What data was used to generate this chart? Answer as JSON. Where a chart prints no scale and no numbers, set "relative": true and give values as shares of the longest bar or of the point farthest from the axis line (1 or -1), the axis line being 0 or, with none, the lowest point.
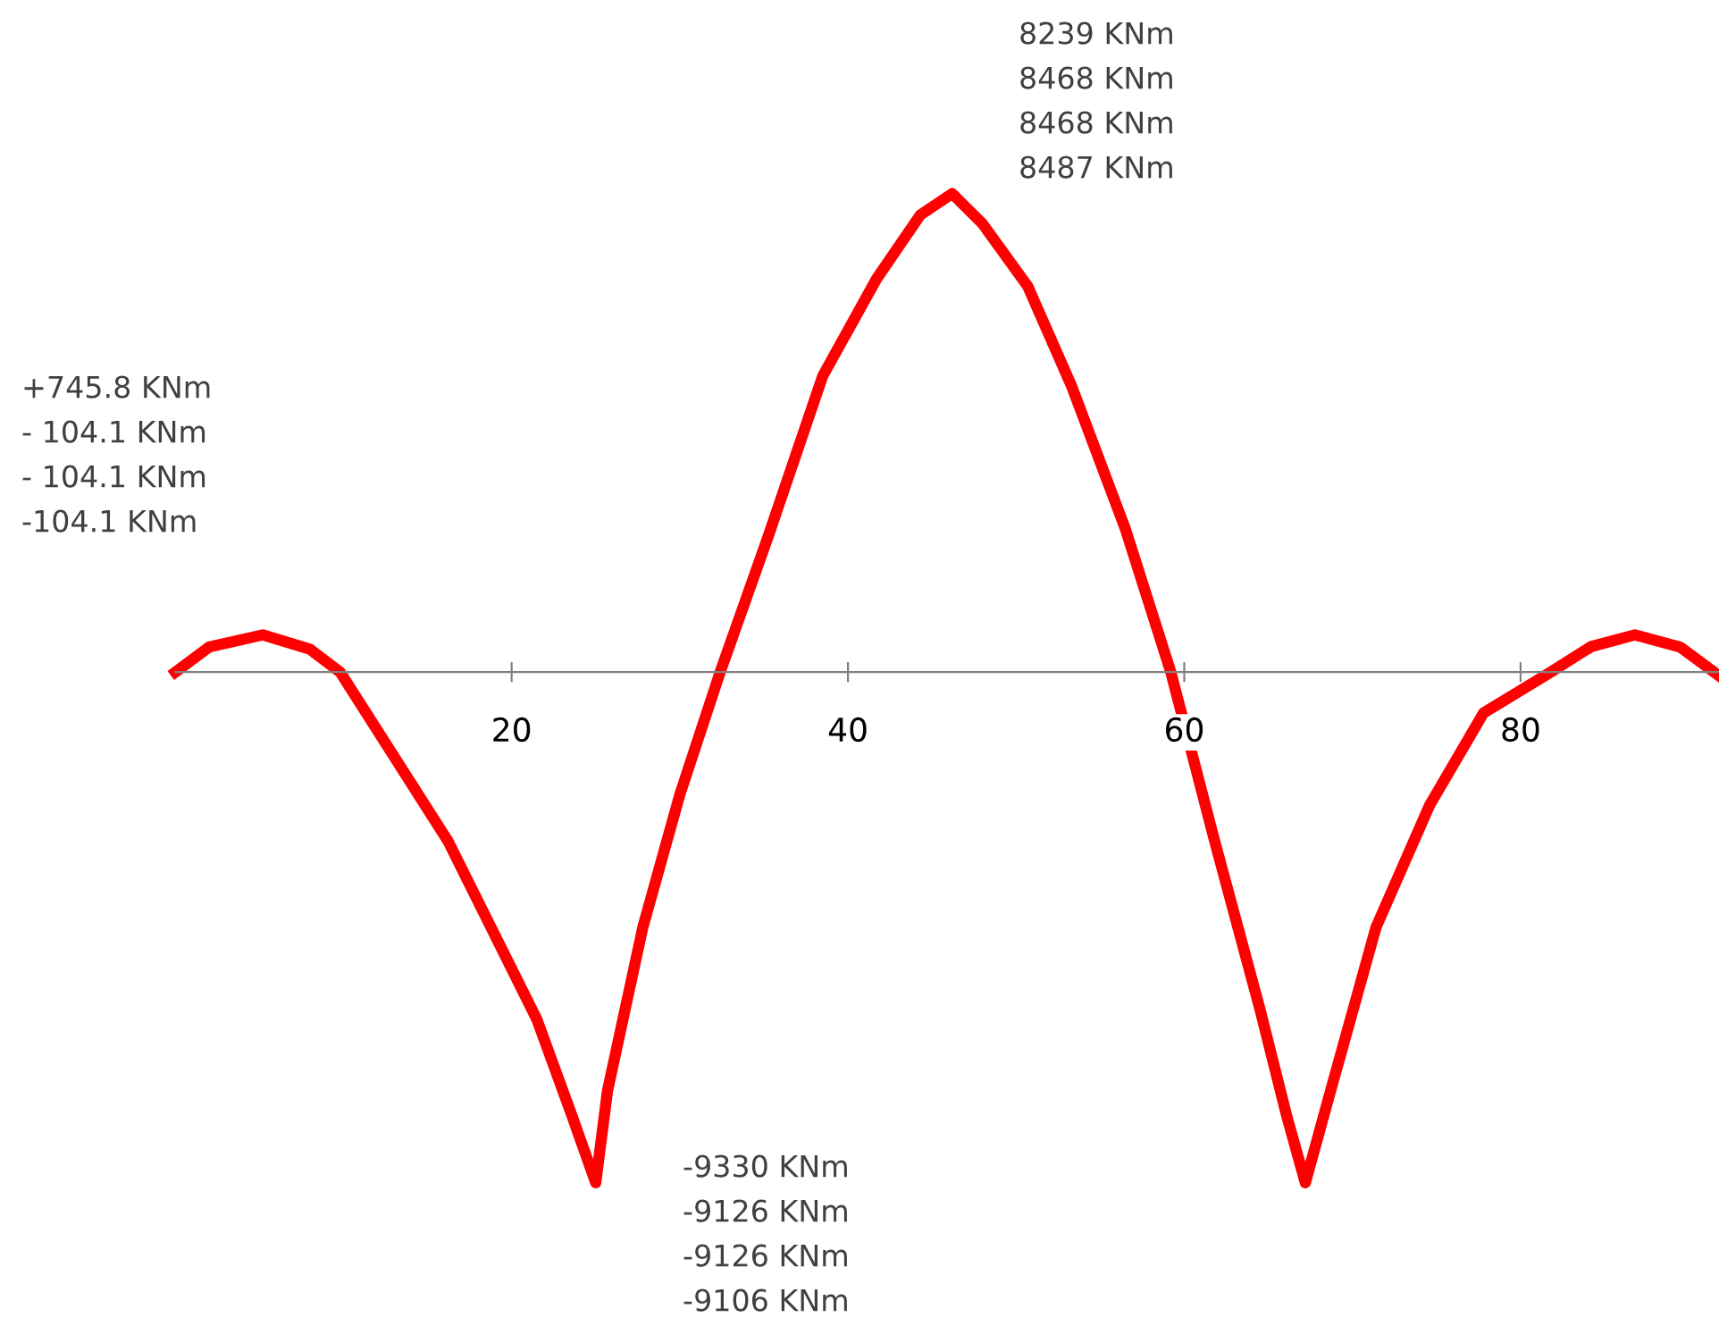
{
  "chart_data": {
    "type": "line",
    "relative": true,
    "x": [
      0,
      2,
      5.2,
      8,
      9.8,
      16.2,
      21.5,
      23.6,
      25,
      25.7,
      27.8,
      30,
      32.4,
      35.3,
      38.5,
      41.7,
      44.3,
      46.2,
      48,
      50.7,
      53.3,
      56.5,
      59.2,
      61.8,
      64.5,
      66.1,
      67.2,
      68.7,
      71.4,
      74.6,
      77.8,
      81.8,
      84.2,
      86.8,
      89.5,
      91.8
    ],
    "series": [
      {
        "color": "#ff0000",
        "values": [
          0,
          0.049,
          0.073,
          0.045,
          0,
          -0.33,
          -0.68,
          -0.87,
          -1,
          -0.82,
          -0.5,
          -0.24,
          0,
          0.27,
          0.58,
          0.77,
          0.895,
          0.937,
          0.878,
          0.755,
          0.56,
          0.28,
          0,
          -0.33,
          -0.66,
          -0.87,
          -1,
          -0.82,
          -0.5,
          -0.26,
          -0.08,
          0,
          0.05,
          0.073,
          0.049,
          -0.007
        ]
      }
    ],
    "xlim": [
      0,
      91.8
    ],
    "xticks": [
      20,
      40,
      60,
      80
    ],
    "grid": false,
    "legend": false,
    "marker": "none",
    "line_style": "solid",
    "annotations": [
      "8239 KNm",
      "8468 KNm",
      "8468 KNm",
      "8487 KNm",
      "+745.8 KNm",
      "- 104.1 KNm",
      "- 104.1 KNm",
      "-104.1 KNm",
      "-9330 KNm",
      "-9126 KNm",
      "-9126 KNm",
      "-9106 KNm"
    ]
  }
}
